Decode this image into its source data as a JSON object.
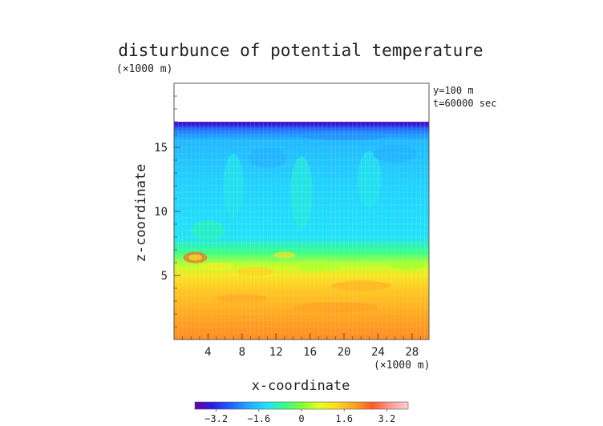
{
  "chart_data": {
    "type": "heatmap",
    "title": "disturbunce of potential temperature",
    "y_unit_label": "(×1000 m)",
    "x_unit_label": "(×1000 m)",
    "xlabel": "x-coordinate",
    "ylabel": "z-coordinate",
    "annotations": [
      "y=100 m",
      "t=60000 sec"
    ],
    "xlim": [
      0,
      30
    ],
    "ylim": [
      0,
      20
    ],
    "x_ticks": [
      4,
      8,
      12,
      16,
      20,
      24,
      28
    ],
    "y_ticks": [
      5,
      10,
      15
    ],
    "domain_top_z": 17,
    "colorbar": {
      "range": [
        -4,
        4
      ],
      "tick_values": [
        -3.2,
        -1.6,
        0,
        1.6,
        3.2
      ],
      "tick_labels": [
        "−3.2",
        "−1.6",
        "0",
        "1.6",
        "3.2"
      ],
      "colors": [
        "#6a00a8",
        "#2a1ee0",
        "#2060ff",
        "#20a8ff",
        "#20e0ff",
        "#30ff90",
        "#80ff30",
        "#e8ff20",
        "#ffd820",
        "#ffa020",
        "#ff5a20",
        "#ff9a9a",
        "#ffd0d0"
      ]
    },
    "field_profile_by_height": [
      {
        "z": 0.0,
        "value": 2.2
      },
      {
        "z": 2.0,
        "value": 1.9
      },
      {
        "z": 4.0,
        "value": 1.5
      },
      {
        "z": 5.0,
        "value": 1.1
      },
      {
        "z": 5.8,
        "value": 0.4
      },
      {
        "z": 6.8,
        "value": -0.6
      },
      {
        "z": 8.0,
        "value": -1.3
      },
      {
        "z": 12.0,
        "value": -1.5
      },
      {
        "z": 15.5,
        "value": -1.8
      },
      {
        "z": 16.3,
        "value": -2.4
      },
      {
        "z": 16.8,
        "value": -3.4
      },
      {
        "z": 17.0,
        "value": -3.9
      }
    ]
  }
}
